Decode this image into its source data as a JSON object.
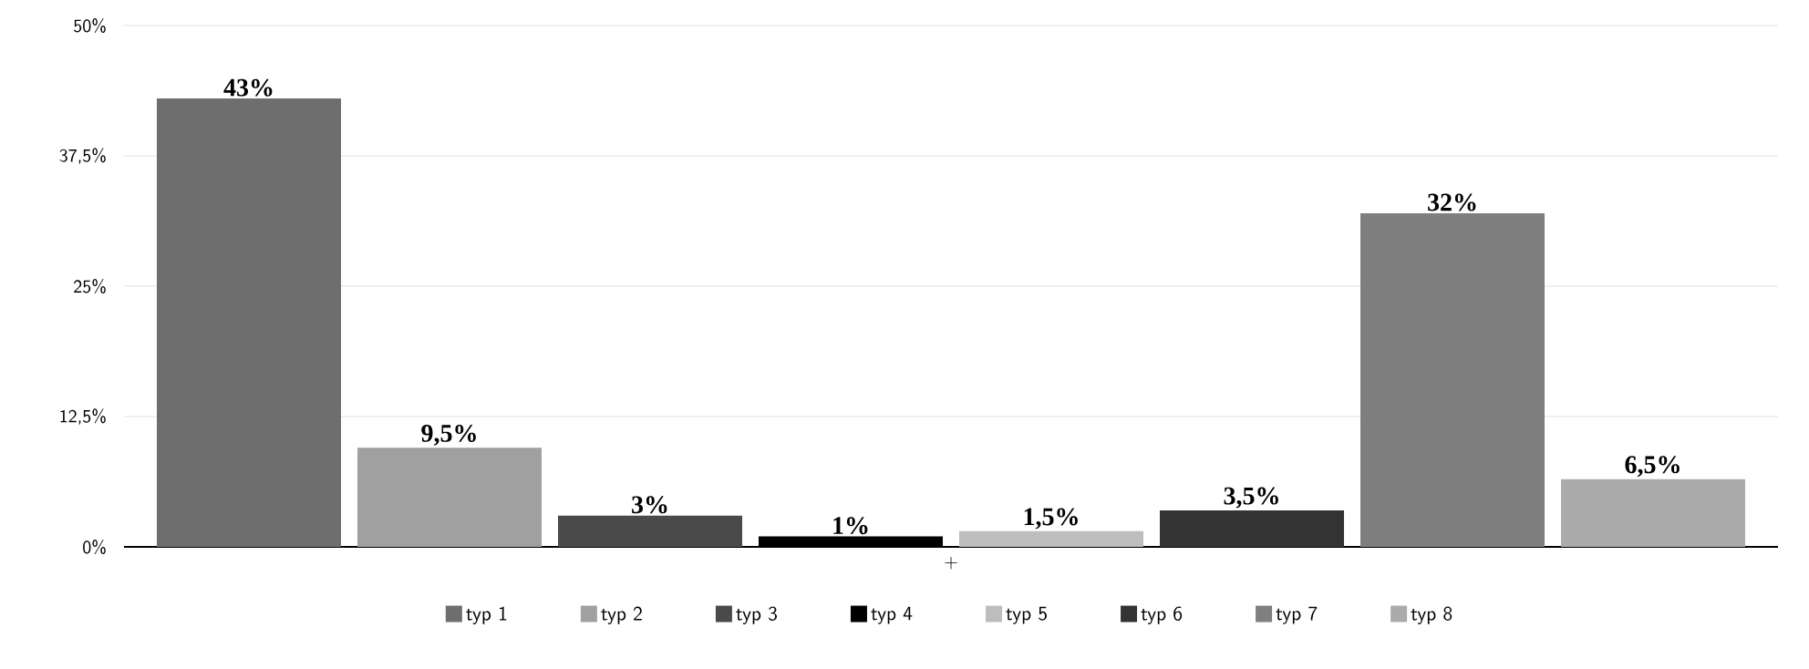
{
  "chart_data": {
    "type": "bar",
    "categories": [
      "+"
    ],
    "series": [
      {
        "name": "typ 1",
        "color": "#6e6e6e",
        "values": [
          43
        ],
        "value_labels": [
          "43%"
        ]
      },
      {
        "name": "typ 2",
        "color": "#a0a0a0",
        "values": [
          9.5
        ],
        "value_labels": [
          "9,5%"
        ]
      },
      {
        "name": "typ 3",
        "color": "#4a4a4a",
        "values": [
          3
        ],
        "value_labels": [
          "3%"
        ]
      },
      {
        "name": "typ 4",
        "color": "#000000",
        "values": [
          1
        ],
        "value_labels": [
          "1%"
        ]
      },
      {
        "name": "typ 5",
        "color": "#bdbdbd",
        "values": [
          1.5
        ],
        "value_labels": [
          "1,5%"
        ]
      },
      {
        "name": "typ 6",
        "color": "#333333",
        "values": [
          3.5
        ],
        "value_labels": [
          "3,5%"
        ]
      },
      {
        "name": "typ 7",
        "color": "#7f7f7f",
        "values": [
          32
        ],
        "value_labels": [
          "32%"
        ]
      },
      {
        "name": "typ 8",
        "color": "#ababab",
        "values": [
          6.5
        ],
        "value_labels": [
          "6,5%"
        ]
      }
    ],
    "ylim": [
      0,
      50
    ],
    "yticks": [
      {
        "value": 0,
        "label": "0%"
      },
      {
        "value": 12.5,
        "label": "12,5%"
      },
      {
        "value": 25,
        "label": "25%"
      },
      {
        "value": 37.5,
        "label": "37,5%"
      },
      {
        "value": 50,
        "label": "50%"
      }
    ],
    "grid": "y",
    "legend": "bottom"
  }
}
